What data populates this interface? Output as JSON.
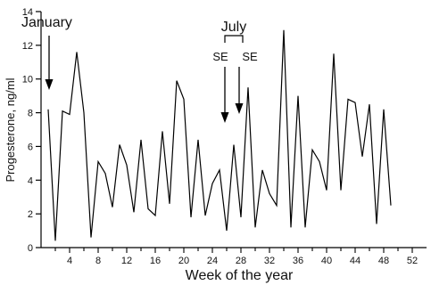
{
  "chart_data": {
    "type": "line",
    "title": "",
    "xlabel": "Week of the year",
    "ylabel": "Progesterone, ng/ml",
    "xlim": [
      0,
      54
    ],
    "ylim": [
      0,
      14
    ],
    "x_ticks": [
      4,
      8,
      12,
      16,
      20,
      24,
      28,
      32,
      36,
      40,
      44,
      48,
      52
    ],
    "y_ticks": [
      0,
      2,
      4,
      6,
      8,
      10,
      12,
      14
    ],
    "grid": false,
    "series": [
      {
        "x": [
          1.0,
          2.0,
          3.0,
          4.0,
          5.0,
          6.0,
          7.0,
          8.0,
          9.0,
          10.0,
          11.0,
          12.0,
          13.0,
          14.0,
          15.0,
          16.0,
          17.0,
          18.0,
          19.0,
          20.0,
          21.0,
          22.0,
          23.0,
          24.0,
          25.0,
          26.0,
          27.0,
          28.0,
          29.0,
          30.0,
          31.0,
          32.0,
          33.0,
          34.0,
          35.0,
          36.0,
          37.0,
          38.0,
          39.0,
          40.0,
          41.0,
          42.0,
          43.0,
          44.0,
          45.0,
          46.0,
          47.0,
          48.0,
          49.0
        ],
        "values": [
          8.2,
          0.4,
          8.1,
          7.9,
          11.6,
          8.0,
          0.6,
          5.1,
          4.4,
          2.4,
          6.1,
          4.9,
          2.1,
          6.4,
          2.3,
          1.9,
          6.9,
          2.6,
          9.9,
          8.8,
          1.8,
          6.4,
          1.9,
          3.8,
          4.6,
          1.0,
          6.1,
          1.8,
          9.5,
          1.2,
          4.6,
          3.2,
          2.5,
          12.9,
          1.2,
          9.0,
          1.2,
          5.8,
          5.1,
          3.4,
          11.5,
          3.4,
          8.8,
          8.6,
          5.4,
          8.5,
          1.4,
          8.2,
          2.5
        ]
      }
    ],
    "annotations": {
      "january_label": "January",
      "july_label": "July",
      "se_label_1": "SE",
      "se_label_2": "SE",
      "january_week": 1,
      "se_weeks": [
        26,
        28
      ],
      "july_bracket_weeks": [
        26,
        28
      ]
    }
  }
}
